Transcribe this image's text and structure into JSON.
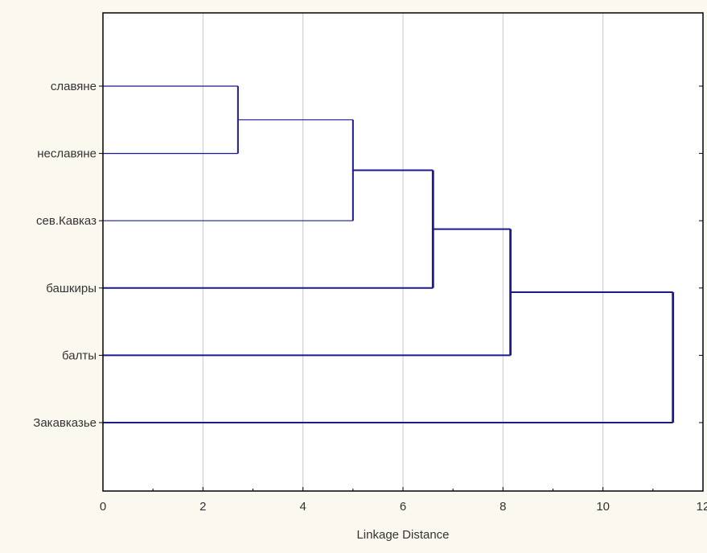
{
  "chart_data": {
    "type": "dendrogram",
    "orientation": "horizontal",
    "title": "",
    "xlabel": "Linkage Distance",
    "ylabel": "",
    "xlim": [
      0,
      12
    ],
    "xticks": [
      0,
      2,
      4,
      6,
      8,
      10,
      12
    ],
    "grid": true,
    "leaves": [
      "славяне",
      "неславяне",
      "сев.Кавказ",
      "башкиры",
      "балты",
      "Закавказье"
    ],
    "merges": [
      {
        "children": [
          "славяне",
          "неславяне"
        ],
        "distance": 2.7
      },
      {
        "children": [
          "славяне+неславяне",
          "сев.Кавказ"
        ],
        "distance": 5.0
      },
      {
        "children": [
          "славяне+неславяне+сев.Кавказ",
          "башкиры"
        ],
        "distance": 6.6
      },
      {
        "children": [
          "славяне+неславяне+сев.Кавказ+башкиры",
          "балты"
        ],
        "distance": 8.15
      },
      {
        "children": [
          "славяне+неславяне+сев.Кавказ+башкиры+балты",
          "Закавказье"
        ],
        "distance": 11.4
      }
    ],
    "line_color": "#1a1a8c",
    "grid_color": "#c8c8c8",
    "background_color": "#fbf9ef"
  }
}
